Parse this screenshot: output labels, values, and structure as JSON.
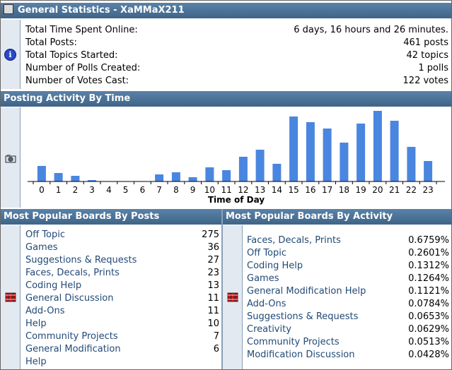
{
  "general": {
    "title": "General Statistics - XaMMaX211",
    "rows": [
      {
        "label": "Total Time Spent Online:",
        "value": "6 days, 16 hours and 26 minutes."
      },
      {
        "label": "Total Posts:",
        "value": "461 posts"
      },
      {
        "label": "Total Topics Started:",
        "value": "42 topics"
      },
      {
        "label": "Number of Polls Created:",
        "value": "1 polls"
      },
      {
        "label": "Number of Votes Cast:",
        "value": "122 votes"
      }
    ]
  },
  "activity": {
    "title": "Posting Activity By Time"
  },
  "chart_data": {
    "type": "bar",
    "title": "Posting Activity By Time",
    "xlabel": "Time of Day",
    "ylabel": "",
    "categories": [
      "0",
      "1",
      "2",
      "3",
      "4",
      "5",
      "6",
      "7",
      "8",
      "9",
      "10",
      "11",
      "12",
      "13",
      "14",
      "15",
      "16",
      "17",
      "18",
      "19",
      "20",
      "21",
      "22",
      "23"
    ],
    "values": [
      22,
      12,
      8,
      2,
      0,
      0,
      0,
      10,
      13,
      6,
      20,
      16,
      35,
      45,
      25,
      92,
      84,
      75,
      55,
      82,
      100,
      86,
      49,
      29
    ],
    "ylim": [
      0,
      100
    ],
    "bar_color": "#4a86e0",
    "grid": false
  },
  "boards_posts": {
    "title": "Most Popular Boards By Posts",
    "rows": [
      {
        "label": "Off Topic",
        "value": "275"
      },
      {
        "label": "Games",
        "value": "36"
      },
      {
        "label": "Suggestions & Requests",
        "value": "27"
      },
      {
        "label": "Faces, Decals, Prints",
        "value": "23"
      },
      {
        "label": "Coding Help",
        "value": "13"
      },
      {
        "label": "General Discussion",
        "value": "11"
      },
      {
        "label": "Add-Ons",
        "value": "11"
      },
      {
        "label": "Help",
        "value": "10"
      },
      {
        "label": "Community Projects",
        "value": "7"
      },
      {
        "label": "General Modification Help",
        "value": "6"
      }
    ]
  },
  "boards_activity": {
    "title": "Most Popular Boards By Activity",
    "rows": [
      {
        "label": "Faces, Decals, Prints",
        "value": "0.6759%"
      },
      {
        "label": "Off Topic",
        "value": "0.2601%"
      },
      {
        "label": "Coding Help",
        "value": "0.1312%"
      },
      {
        "label": "Games",
        "value": "0.1264%"
      },
      {
        "label": "General Modification Help",
        "value": "0.1121%"
      },
      {
        "label": "Add-Ons",
        "value": "0.0784%"
      },
      {
        "label": "Suggestions & Requests",
        "value": "0.0653%"
      },
      {
        "label": "Creativity",
        "value": "0.0629%"
      },
      {
        "label": "Community Projects",
        "value": "0.0513%"
      },
      {
        "label": "Modification Discussion",
        "value": "0.0428%"
      }
    ]
  },
  "colors": {
    "header": "#476c8e",
    "sidebar": "#e3e9f1",
    "link": "#224a77",
    "bar": "#4a86e0"
  },
  "icons": {
    "general": "info-icon",
    "activity": "camera-icon",
    "boards": "books-icon"
  }
}
